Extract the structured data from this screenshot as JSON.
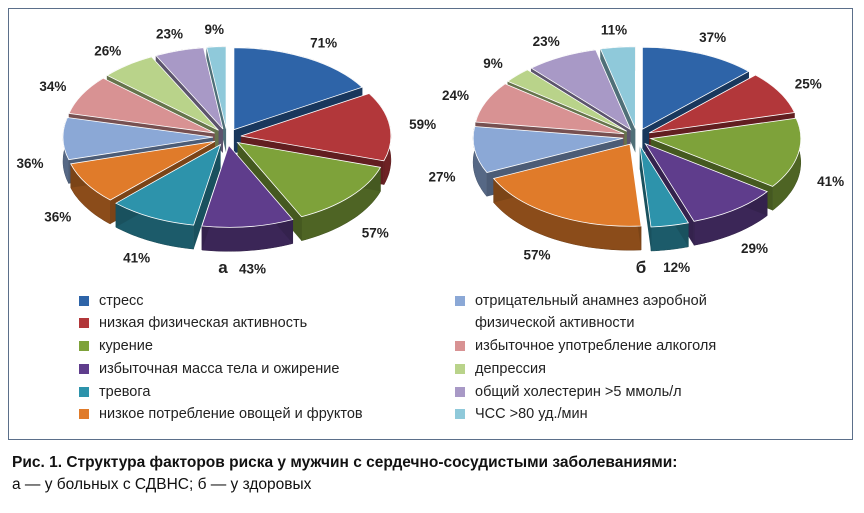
{
  "chart_data": [
    {
      "type": "pie",
      "panel_label": "а",
      "categories": [
        "стресс",
        "низкая физическая активность",
        "курение",
        "избыточная масса тела и ожирение",
        "тревога",
        "низкое потребление овощей и фруктов",
        "отрицательный анамнез аэробной физической активности",
        "избыточное употребление алкоголя",
        "депрессия",
        "общий холестерин >5 ммоль/л",
        "ЧСС >80 уд./мин"
      ],
      "values": [
        71,
        59,
        57,
        43,
        41,
        36,
        36,
        34,
        26,
        23,
        9
      ],
      "value_labels": [
        "71%",
        "59%",
        "57%",
        "43%",
        "41%",
        "36%",
        "36%",
        "34%",
        "26%",
        "23%",
        "9%"
      ],
      "style": "3d exploded"
    },
    {
      "type": "pie",
      "panel_label": "б",
      "categories": [
        "стресс",
        "низкая физическая активность",
        "курение",
        "избыточная масса тела и ожирение",
        "тревога",
        "низкое потребление овощей и фруктов",
        "отрицательный анамнез аэробной физической активности",
        "избыточное употребление алкоголя",
        "депрессия",
        "общий холестерин >5 ммоль/л",
        "ЧСС >80 уд./мин"
      ],
      "values": [
        37,
        25,
        41,
        29,
        12,
        57,
        27,
        24,
        9,
        23,
        11
      ],
      "value_labels": [
        "37%",
        "25%",
        "41%",
        "29%",
        "12%",
        "57%",
        "27%",
        "24%",
        "9%",
        "23%",
        "11%"
      ],
      "style": "3d exploded"
    }
  ],
  "colors": [
    "#2e64a8",
    "#b2373a",
    "#7ea23a",
    "#5f3d8c",
    "#2d93ab",
    "#e07b2a",
    "#8ba8d6",
    "#d89293",
    "#b9d38a",
    "#a899c6",
    "#8fc9da"
  ],
  "legend": {
    "left": [
      "стресс",
      "низкая физическая активность",
      "курение",
      "избыточная масса тела и ожирение",
      "тревога",
      "низкое потребление овощей и фруктов"
    ],
    "right": [
      "отрицательный анамнез аэробной",
      "физической активности",
      "избыточное употребление алкоголя",
      "депрессия",
      "общий холестерин >5 ммоль/л",
      "ЧСС >80 уд./мин"
    ]
  },
  "caption": {
    "line1": "Рис. 1. Структура факторов риска у мужчин с сердечно-сосудистыми заболеваниями:",
    "line2": "а — у больных с СДВНС; б — у здоровых"
  }
}
